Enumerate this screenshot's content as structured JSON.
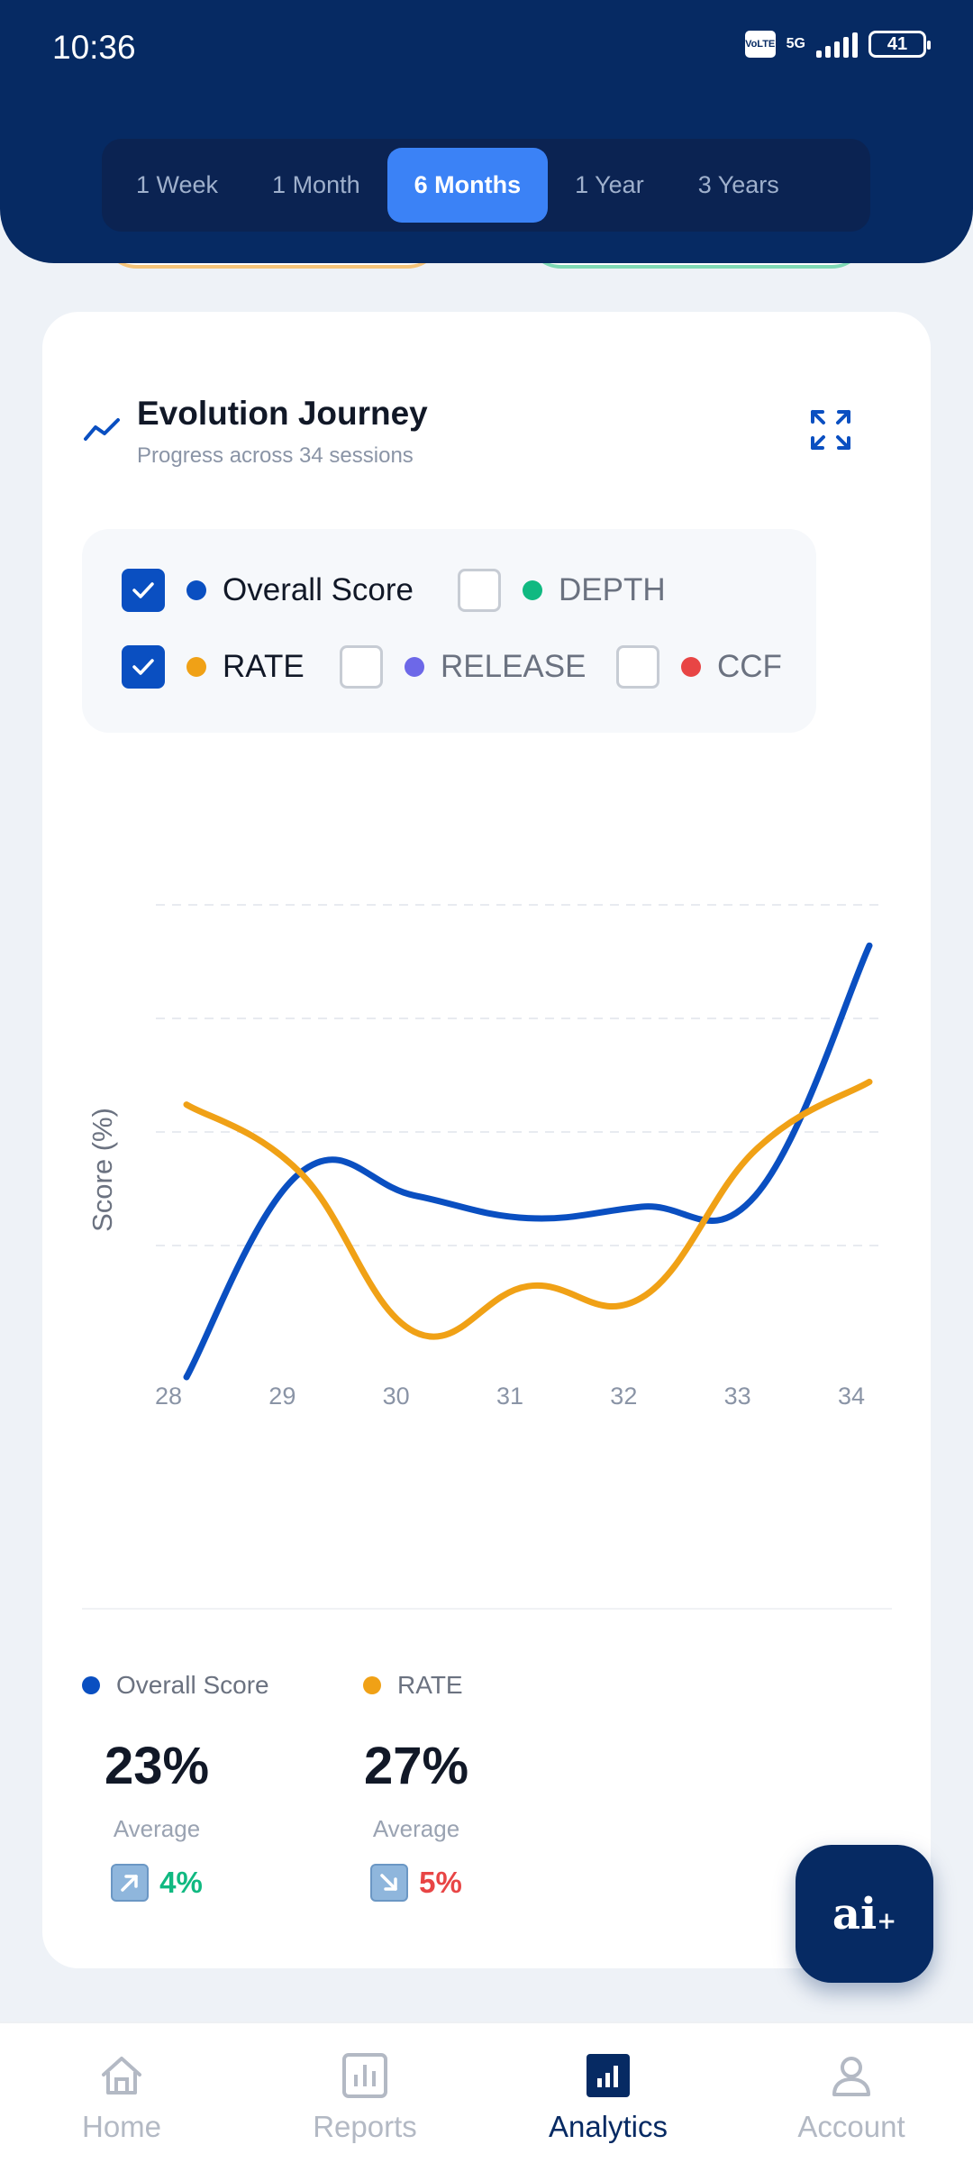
{
  "status_bar": {
    "time": "10:36",
    "network": "5G",
    "battery": "41",
    "volte": "Vo LTE"
  },
  "range_tabs": [
    {
      "label": "1 Week",
      "active": false
    },
    {
      "label": "1 Month",
      "active": false
    },
    {
      "label": "6 Months",
      "active": true
    },
    {
      "label": "1 Year",
      "active": false
    },
    {
      "label": "3 Years",
      "active": false
    }
  ],
  "card": {
    "title": "Evolution Journey",
    "subtitle": "Progress across 34 sessions"
  },
  "legend": [
    {
      "label": "Overall Score",
      "checked": true,
      "color": "#0a4fc1"
    },
    {
      "label": "DEPTH",
      "checked": false,
      "color": "#10b981"
    },
    {
      "label": "RATE",
      "checked": true,
      "color": "#f0a116"
    },
    {
      "label": "RELEASE",
      "checked": false,
      "color": "#6d68e8"
    },
    {
      "label": "CCF",
      "checked": false,
      "color": "#e84545"
    }
  ],
  "chart_data": {
    "type": "line",
    "ylabel": "Score (%)",
    "xlabel": "",
    "x": [
      "28",
      "29",
      "30",
      "31",
      "32",
      "33",
      "34"
    ],
    "ylim": [
      0,
      40
    ],
    "series": [
      {
        "name": "Overall Score",
        "color": "#0a4fc1",
        "values": [
          0,
          18,
          16,
          14,
          15,
          16,
          38
        ]
      },
      {
        "name": "RATE",
        "color": "#f0a116",
        "values": [
          24,
          18,
          4,
          8,
          7,
          20,
          26
        ]
      }
    ]
  },
  "stats": [
    {
      "name": "Overall Score",
      "color": "#0a4fc1",
      "value": "23%",
      "sub": "Average",
      "change": "4%",
      "direction": "up",
      "change_color": "#10b981"
    },
    {
      "name": "RATE",
      "color": "#f0a116",
      "value": "27%",
      "sub": "Average",
      "change": "5%",
      "direction": "down",
      "change_color": "#e84545"
    }
  ],
  "fab": {
    "label": "ai",
    "sup": "+"
  },
  "nav": [
    {
      "label": "Home",
      "icon": "home-icon",
      "active": false
    },
    {
      "label": "Reports",
      "icon": "reports-icon",
      "active": false
    },
    {
      "label": "Analytics",
      "icon": "analytics-icon",
      "active": true
    },
    {
      "label": "Account",
      "icon": "account-icon",
      "active": false
    }
  ]
}
